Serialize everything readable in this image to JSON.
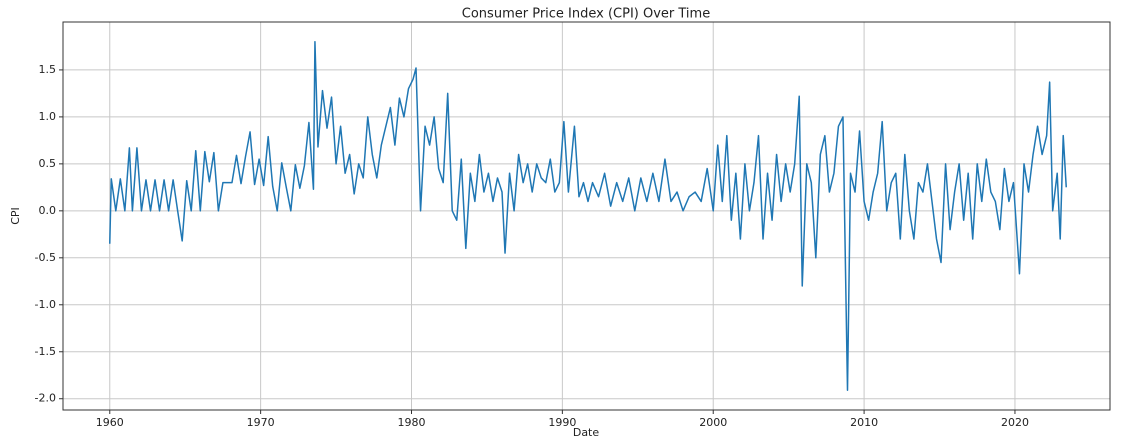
{
  "chart_data": {
    "type": "line",
    "title": "Consumer Price Index (CPI) Over Time",
    "xlabel": "Date",
    "ylabel": "CPI",
    "x": [
      1960.0,
      1960.1,
      1960.4,
      1960.7,
      1961.0,
      1961.3,
      1961.5,
      1961.8,
      1962.1,
      1962.4,
      1962.7,
      1963.0,
      1963.3,
      1963.6,
      1963.9,
      1964.2,
      1964.5,
      1964.8,
      1965.1,
      1965.4,
      1965.7,
      1966.0,
      1966.3,
      1966.6,
      1966.9,
      1967.2,
      1967.5,
      1967.8,
      1968.1,
      1968.4,
      1968.7,
      1969.0,
      1969.3,
      1969.6,
      1969.9,
      1970.2,
      1970.5,
      1970.8,
      1971.1,
      1971.4,
      1971.7,
      1972.0,
      1972.3,
      1972.6,
      1972.9,
      1973.2,
      1973.5,
      1973.6,
      1973.8,
      1974.1,
      1974.4,
      1974.7,
      1975.0,
      1975.3,
      1975.6,
      1975.9,
      1976.2,
      1976.5,
      1976.8,
      1977.1,
      1977.4,
      1977.7,
      1978.0,
      1978.3,
      1978.6,
      1978.9,
      1979.2,
      1979.5,
      1979.8,
      1980.1,
      1980.3,
      1980.6,
      1980.9,
      1981.2,
      1981.5,
      1981.8,
      1982.1,
      1982.4,
      1982.7,
      1983.0,
      1983.3,
      1983.6,
      1983.9,
      1984.2,
      1984.5,
      1984.8,
      1985.1,
      1985.4,
      1985.7,
      1986.0,
      1986.2,
      1986.5,
      1986.8,
      1987.1,
      1987.4,
      1987.7,
      1988.0,
      1988.3,
      1988.6,
      1988.9,
      1989.2,
      1989.5,
      1989.8,
      1990.1,
      1990.4,
      1990.8,
      1991.1,
      1991.4,
      1991.7,
      1992.0,
      1992.4,
      1992.8,
      1993.2,
      1993.6,
      1994.0,
      1994.4,
      1994.8,
      1995.2,
      1995.6,
      1996.0,
      1996.4,
      1996.8,
      1997.2,
      1997.6,
      1998.0,
      1998.4,
      1998.8,
      1999.2,
      1999.6,
      2000.0,
      2000.3,
      2000.6,
      2000.9,
      2001.2,
      2001.5,
      2001.8,
      2002.1,
      2002.4,
      2002.7,
      2003.0,
      2003.3,
      2003.6,
      2003.9,
      2004.2,
      2004.5,
      2004.8,
      2005.1,
      2005.4,
      2005.7,
      2005.9,
      2006.2,
      2006.5,
      2006.8,
      2007.1,
      2007.4,
      2007.7,
      2008.0,
      2008.3,
      2008.6,
      2008.9,
      2009.1,
      2009.4,
      2009.7,
      2010.0,
      2010.3,
      2010.6,
      2010.9,
      2011.2,
      2011.5,
      2011.8,
      2012.1,
      2012.4,
      2012.7,
      2013.0,
      2013.3,
      2013.6,
      2013.9,
      2014.2,
      2014.5,
      2014.8,
      2015.1,
      2015.4,
      2015.7,
      2016.0,
      2016.3,
      2016.6,
      2016.9,
      2017.2,
      2017.5,
      2017.8,
      2018.1,
      2018.4,
      2018.7,
      2019.0,
      2019.3,
      2019.6,
      2019.9,
      2020.3,
      2020.6,
      2020.9,
      2021.2,
      2021.5,
      2021.8,
      2022.1,
      2022.3,
      2022.5,
      2022.8,
      2023.0,
      2023.2,
      2023.4
    ],
    "values": [
      -0.35,
      0.34,
      0.0,
      0.34,
      0.0,
      0.67,
      0.0,
      0.67,
      0.0,
      0.33,
      0.0,
      0.33,
      0.0,
      0.33,
      0.0,
      0.33,
      0.0,
      -0.32,
      0.32,
      0.0,
      0.64,
      0.0,
      0.63,
      0.31,
      0.62,
      0.0,
      0.3,
      0.3,
      0.3,
      0.59,
      0.29,
      0.58,
      0.84,
      0.28,
      0.55,
      0.27,
      0.79,
      0.26,
      0.0,
      0.51,
      0.25,
      0.0,
      0.49,
      0.24,
      0.48,
      0.94,
      0.23,
      1.8,
      0.68,
      1.28,
      0.88,
      1.21,
      0.5,
      0.9,
      0.4,
      0.6,
      0.18,
      0.5,
      0.35,
      1.0,
      0.6,
      0.35,
      0.7,
      0.9,
      1.1,
      0.7,
      1.2,
      1.0,
      1.3,
      1.4,
      1.52,
      0.0,
      0.9,
      0.7,
      1.0,
      0.45,
      0.3,
      1.25,
      0.0,
      -0.1,
      0.55,
      -0.4,
      0.4,
      0.1,
      0.6,
      0.2,
      0.4,
      0.1,
      0.35,
      0.2,
      -0.45,
      0.4,
      0.0,
      0.6,
      0.3,
      0.5,
      0.2,
      0.5,
      0.35,
      0.3,
      0.55,
      0.2,
      0.3,
      0.95,
      0.2,
      0.9,
      0.15,
      0.3,
      0.1,
      0.3,
      0.15,
      0.4,
      0.05,
      0.3,
      0.1,
      0.35,
      0.0,
      0.35,
      0.1,
      0.4,
      0.1,
      0.55,
      0.1,
      0.2,
      0.0,
      0.15,
      0.2,
      0.1,
      0.45,
      0.0,
      0.7,
      0.1,
      0.8,
      -0.1,
      0.4,
      -0.3,
      0.5,
      0.0,
      0.3,
      0.8,
      -0.3,
      0.4,
      -0.1,
      0.6,
      0.1,
      0.5,
      0.2,
      0.5,
      1.22,
      -0.8,
      0.5,
      0.3,
      -0.5,
      0.6,
      0.8,
      0.2,
      0.4,
      0.9,
      1.0,
      -1.91,
      0.4,
      0.2,
      0.85,
      0.1,
      -0.1,
      0.2,
      0.4,
      0.95,
      0.0,
      0.3,
      0.4,
      -0.3,
      0.6,
      0.0,
      -0.3,
      0.3,
      0.2,
      0.5,
      0.1,
      -0.3,
      -0.55,
      0.5,
      -0.2,
      0.2,
      0.5,
      -0.1,
      0.4,
      -0.3,
      0.5,
      0.1,
      0.55,
      0.2,
      0.1,
      -0.2,
      0.45,
      0.1,
      0.3,
      -0.67,
      0.5,
      0.2,
      0.6,
      0.9,
      0.6,
      0.8,
      1.37,
      0.0,
      0.4,
      -0.3,
      0.8,
      0.25
    ],
    "color": "#1f77b4",
    "xlim": [
      1956.9,
      2026.3
    ],
    "xticks": [
      1960,
      1970,
      1980,
      1990,
      2000,
      2010,
      2020
    ],
    "ylim": [
      -2.12,
      2.01
    ],
    "yticks": [
      {
        "value": -2.0,
        "label": "-2.0"
      },
      {
        "value": -1.5,
        "label": "-1.5"
      },
      {
        "value": -1.0,
        "label": "-1.0"
      },
      {
        "value": -0.5,
        "label": "-0.5"
      },
      {
        "value": 0.0,
        "label": "0.0"
      },
      {
        "value": 0.5,
        "label": "0.5"
      },
      {
        "value": 1.0,
        "label": "1.0"
      },
      {
        "value": 1.5,
        "label": "1.5"
      }
    ],
    "grid": true
  }
}
